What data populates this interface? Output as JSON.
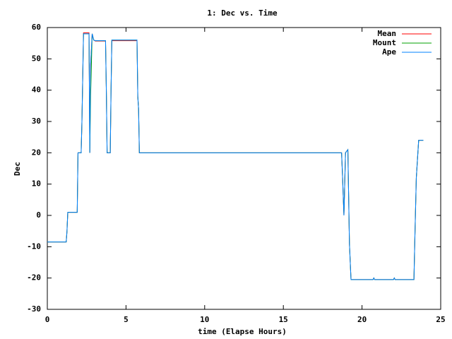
{
  "chart_data": {
    "type": "line",
    "title": "1: Dec vs. Time",
    "xlabel": "time (Elapse Hours)",
    "ylabel": "Dec",
    "x": [
      0,
      1.2,
      1.25,
      1.3,
      1.9,
      1.95,
      2.15,
      2.2,
      2.3,
      2.65,
      2.7,
      2.75,
      2.85,
      2.95,
      3.05,
      3.7,
      3.75,
      3.8,
      4.0,
      4.05,
      4.1,
      5.7,
      5.75,
      5.8,
      5.85,
      18.7,
      18.75,
      18.85,
      18.95,
      19.1,
      19.2,
      19.3,
      20.7,
      20.75,
      20.8,
      22.0,
      22.05,
      22.1,
      23.3,
      23.35,
      23.45,
      23.6,
      23.9
    ],
    "series": [
      {
        "name": "Mean",
        "color": "#ff0000",
        "values": [
          -8.5,
          -8.5,
          -5,
          1,
          1,
          20,
          20,
          30,
          58.3,
          58.3,
          20,
          48,
          58,
          56,
          55.7,
          55.7,
          40,
          20,
          20,
          40,
          55.8,
          55.8,
          38,
          34,
          20,
          20,
          14,
          0,
          20,
          21,
          -9,
          -20.5,
          -20.5,
          -20,
          -20.5,
          -20.5,
          -20,
          -20.5,
          -20.5,
          -9,
          12,
          24,
          24
        ]
      },
      {
        "name": "Mount",
        "color": "#00a000",
        "values": [
          -8.5,
          -8.5,
          -5,
          1,
          1,
          20,
          20,
          30,
          58,
          58,
          20,
          38,
          58,
          56,
          55.8,
          55.8,
          40,
          20,
          20,
          40,
          56,
          56,
          38,
          34,
          20,
          20,
          14,
          0,
          20,
          21,
          -9,
          -20.5,
          -20.5,
          -20,
          -20.5,
          -20.5,
          -20,
          -20.5,
          -20.5,
          -9,
          12,
          24,
          24
        ]
      },
      {
        "name": "Ape",
        "color": "#0080ff",
        "values": [
          -8.5,
          -8.5,
          -5,
          1,
          1,
          20,
          20,
          30,
          58,
          58,
          20,
          48,
          58,
          56,
          55.8,
          55.8,
          40,
          20,
          20,
          40,
          56,
          56,
          38,
          34,
          20,
          20,
          14,
          0,
          20,
          21,
          -9,
          -20.5,
          -20.5,
          -20,
          -20.5,
          -20.5,
          -20,
          -20.5,
          -20.5,
          -9,
          12,
          24,
          24
        ]
      }
    ],
    "xlim": [
      0,
      25
    ],
    "xticks": [
      0,
      5,
      10,
      15,
      20,
      25
    ],
    "ylim": [
      -30,
      60
    ],
    "yticks": [
      -30,
      -20,
      -10,
      0,
      10,
      20,
      30,
      40,
      50,
      60
    ],
    "legend": "top-right"
  }
}
